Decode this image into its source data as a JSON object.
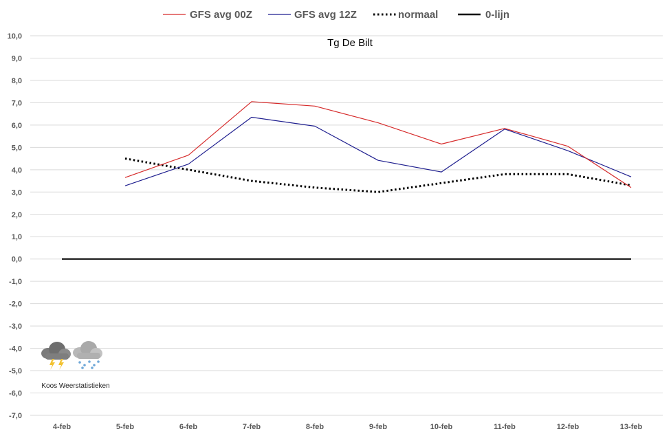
{
  "chart_data": {
    "type": "line",
    "title": "Tg De Bilt",
    "categories": [
      "4-feb",
      "5-feb",
      "6-feb",
      "7-feb",
      "8-feb",
      "9-feb",
      "10-feb",
      "11-feb",
      "12-feb",
      "13-feb"
    ],
    "ylim": [
      -7.0,
      10.0
    ],
    "ytick_step": 1.0,
    "y_tick_labels": [
      "10,0",
      "9,0",
      "8,0",
      "7,0",
      "6,0",
      "5,0",
      "4,0",
      "3,0",
      "2,0",
      "1,0",
      "0,0",
      "-1,0",
      "-2,0",
      "-3,0",
      "-4,0",
      "-5,0",
      "-6,0",
      "-7,0"
    ],
    "grid": true,
    "legend_position": "top",
    "series": [
      {
        "name": "GFS avg 00Z",
        "color": "#d62b2b",
        "style": "solid",
        "values": [
          null,
          3.65,
          4.65,
          7.05,
          6.85,
          6.1,
          5.15,
          5.85,
          5.05,
          3.2
        ]
      },
      {
        "name": "GFS avg 12Z",
        "color": "#1f1f8f",
        "style": "solid",
        "values": [
          null,
          3.28,
          4.25,
          6.35,
          5.95,
          4.42,
          3.9,
          5.82,
          4.85,
          3.68
        ]
      },
      {
        "name": "normaal",
        "color": "#000000",
        "style": "dotted",
        "values": [
          null,
          4.5,
          4.0,
          3.5,
          3.2,
          3.0,
          3.4,
          3.8,
          3.8,
          3.3
        ]
      },
      {
        "name": "0-lijn",
        "color": "#000000",
        "style": "solid-thick",
        "values": [
          0,
          0,
          0,
          0,
          0,
          0,
          0,
          0,
          0,
          0
        ]
      }
    ],
    "watermark": {
      "text": "Koos Weerstatistieken",
      "icons": [
        "thunderstorm-cloud-icon",
        "snow-cloud-icon"
      ]
    }
  }
}
